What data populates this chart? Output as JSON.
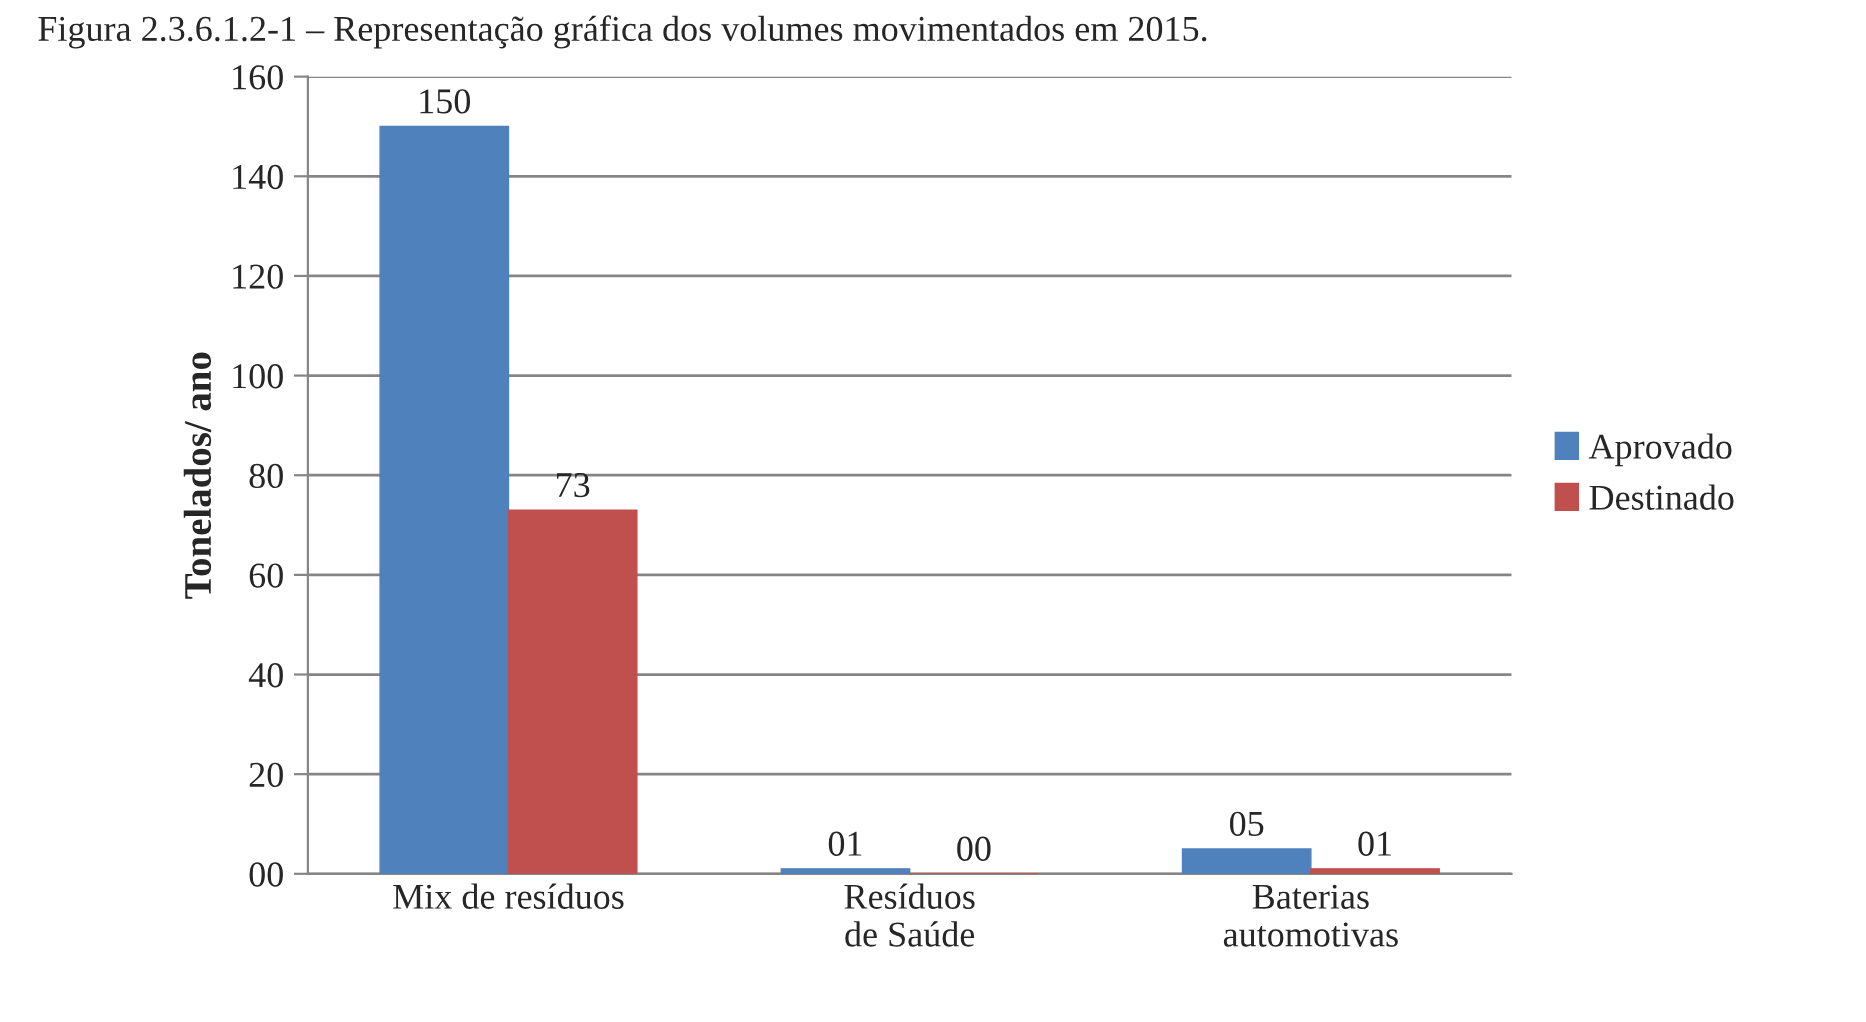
{
  "chart_data": {
    "type": "bar",
    "title": "Figura 2.3.6.1.2-1 – Representação gráfica dos volumes movimentados em 2015.",
    "ylabel": "Tonelados/ ano",
    "categories": [
      "Mix de resíduos",
      "Resíduos\nde Saúde",
      "Baterias\nautomotivas"
    ],
    "series": [
      {
        "name": "Aprovado",
        "color": "#4f81bd",
        "values": [
          150,
          1,
          5
        ],
        "value_labels": [
          "150",
          "01",
          "05"
        ]
      },
      {
        "name": "Destinado",
        "color": "#c0504d",
        "values": [
          73,
          0,
          1
        ],
        "value_labels": [
          "73",
          "00",
          "01"
        ]
      }
    ],
    "ylim": [
      0,
      160
    ],
    "yticks": [
      {
        "value": 0,
        "label": "00"
      },
      20,
      40,
      60,
      80,
      100,
      120,
      140,
      160
    ],
    "grid": "y",
    "legend": "right"
  }
}
